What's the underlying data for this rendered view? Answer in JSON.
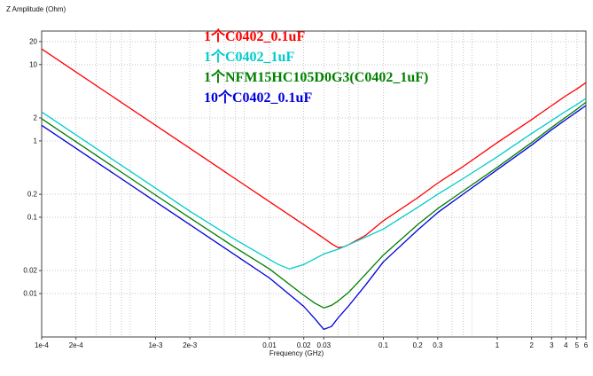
{
  "chart_data": {
    "type": "line",
    "title": "",
    "x_axis": {
      "label": "Frequency (GHz)",
      "scale": "log",
      "range": [
        0.0001,
        6
      ],
      "ticks": [
        {
          "value": 0.0001,
          "label": "1e-4"
        },
        {
          "value": 0.0002,
          "label": "2e-4"
        },
        {
          "value": 0.001,
          "label": "1e-3"
        },
        {
          "value": 0.002,
          "label": "2e-3"
        },
        {
          "value": 0.01,
          "label": "0.01"
        },
        {
          "value": 0.02,
          "label": "0.02"
        },
        {
          "value": 0.03,
          "label": "0.03"
        },
        {
          "value": 0.1,
          "label": "0.1"
        },
        {
          "value": 0.2,
          "label": "0.2"
        },
        {
          "value": 0.3,
          "label": "0.3"
        },
        {
          "value": 1,
          "label": "1"
        },
        {
          "value": 2,
          "label": "2"
        },
        {
          "value": 3,
          "label": "3"
        },
        {
          "value": 4,
          "label": "4"
        },
        {
          "value": 5,
          "label": "5"
        },
        {
          "value": 6,
          "label": "6"
        }
      ]
    },
    "y_axis": {
      "label": "Z Amplitude (Ohm)",
      "scale": "log",
      "range": [
        0.0027,
        27.5
      ],
      "ticks": [
        {
          "value": 20,
          "label": "20"
        },
        {
          "value": 10,
          "label": "10"
        },
        {
          "value": 2,
          "label": "2"
        },
        {
          "value": 1,
          "label": "1"
        },
        {
          "value": 0.2,
          "label": "0.2"
        },
        {
          "value": 0.1,
          "label": "0.1"
        },
        {
          "value": 0.02,
          "label": "0.02"
        },
        {
          "value": 0.01,
          "label": "0.01"
        }
      ]
    },
    "grid": {
      "style": "dotted",
      "color": "#c6c6c6",
      "x_mantissas": [
        1,
        2,
        3,
        4,
        5,
        6
      ],
      "y_mantissas": [
        1,
        2
      ]
    },
    "legend_position": "top-center-inside",
    "series": [
      {
        "name": "1个C0402_0.1uF",
        "color": "#ff0000",
        "points": [
          [
            0.0001,
            16
          ],
          [
            0.0002,
            8
          ],
          [
            0.0005,
            3.2
          ],
          [
            0.001,
            1.6
          ],
          [
            0.002,
            0.8
          ],
          [
            0.005,
            0.32
          ],
          [
            0.01,
            0.16
          ],
          [
            0.02,
            0.08
          ],
          [
            0.03,
            0.053
          ],
          [
            0.035,
            0.045
          ],
          [
            0.04,
            0.04
          ],
          [
            0.045,
            0.041
          ],
          [
            0.05,
            0.044
          ],
          [
            0.07,
            0.058
          ],
          [
            0.1,
            0.09
          ],
          [
            0.2,
            0.18
          ],
          [
            0.3,
            0.28
          ],
          [
            0.5,
            0.46
          ],
          [
            1,
            0.95
          ],
          [
            2,
            1.9
          ],
          [
            3,
            2.9
          ],
          [
            4,
            3.9
          ],
          [
            5,
            4.8
          ],
          [
            6,
            5.8
          ]
        ]
      },
      {
        "name": "1个C0402_1uF",
        "color": "#00cccc",
        "points": [
          [
            0.0001,
            2.4
          ],
          [
            0.001,
            0.24
          ],
          [
            0.002,
            0.12
          ],
          [
            0.005,
            0.051
          ],
          [
            0.008,
            0.034
          ],
          [
            0.01,
            0.028
          ],
          [
            0.012,
            0.024
          ],
          [
            0.015,
            0.021
          ],
          [
            0.02,
            0.024
          ],
          [
            0.03,
            0.033
          ],
          [
            0.04,
            0.038
          ],
          [
            0.05,
            0.044
          ],
          [
            0.07,
            0.055
          ],
          [
            0.1,
            0.07
          ],
          [
            0.2,
            0.135
          ],
          [
            0.3,
            0.2
          ],
          [
            0.5,
            0.32
          ],
          [
            1,
            0.62
          ],
          [
            2,
            1.25
          ],
          [
            3,
            1.85
          ],
          [
            4,
            2.45
          ],
          [
            5,
            3.0
          ],
          [
            6,
            3.6
          ]
        ]
      },
      {
        "name": "1个NFM15HC105D0G3(C0402_1uF)",
        "color": "#008000",
        "points": [
          [
            0.0001,
            1.95
          ],
          [
            0.001,
            0.195
          ],
          [
            0.002,
            0.098
          ],
          [
            0.005,
            0.04
          ],
          [
            0.01,
            0.021
          ],
          [
            0.02,
            0.0095
          ],
          [
            0.025,
            0.0075
          ],
          [
            0.03,
            0.0065
          ],
          [
            0.035,
            0.007
          ],
          [
            0.04,
            0.008
          ],
          [
            0.05,
            0.0105
          ],
          [
            0.07,
            0.018
          ],
          [
            0.1,
            0.032
          ],
          [
            0.2,
            0.08
          ],
          [
            0.3,
            0.13
          ],
          [
            0.5,
            0.22
          ],
          [
            1,
            0.45
          ],
          [
            2,
            0.95
          ],
          [
            3,
            1.5
          ],
          [
            4,
            2.05
          ],
          [
            5,
            2.6
          ],
          [
            6,
            3.2
          ]
        ]
      },
      {
        "name": "10个C0402_0.1uF",
        "color": "#0000dd",
        "points": [
          [
            0.0001,
            1.6
          ],
          [
            0.001,
            0.16
          ],
          [
            0.002,
            0.08
          ],
          [
            0.005,
            0.032
          ],
          [
            0.01,
            0.016
          ],
          [
            0.02,
            0.0068
          ],
          [
            0.025,
            0.0047
          ],
          [
            0.03,
            0.0034
          ],
          [
            0.035,
            0.0037
          ],
          [
            0.04,
            0.0048
          ],
          [
            0.05,
            0.007
          ],
          [
            0.07,
            0.013
          ],
          [
            0.1,
            0.026
          ],
          [
            0.2,
            0.068
          ],
          [
            0.3,
            0.115
          ],
          [
            0.5,
            0.2
          ],
          [
            1,
            0.42
          ],
          [
            2,
            0.88
          ],
          [
            3,
            1.4
          ],
          [
            4,
            1.9
          ],
          [
            5,
            2.4
          ],
          [
            6,
            2.9
          ]
        ]
      }
    ]
  }
}
